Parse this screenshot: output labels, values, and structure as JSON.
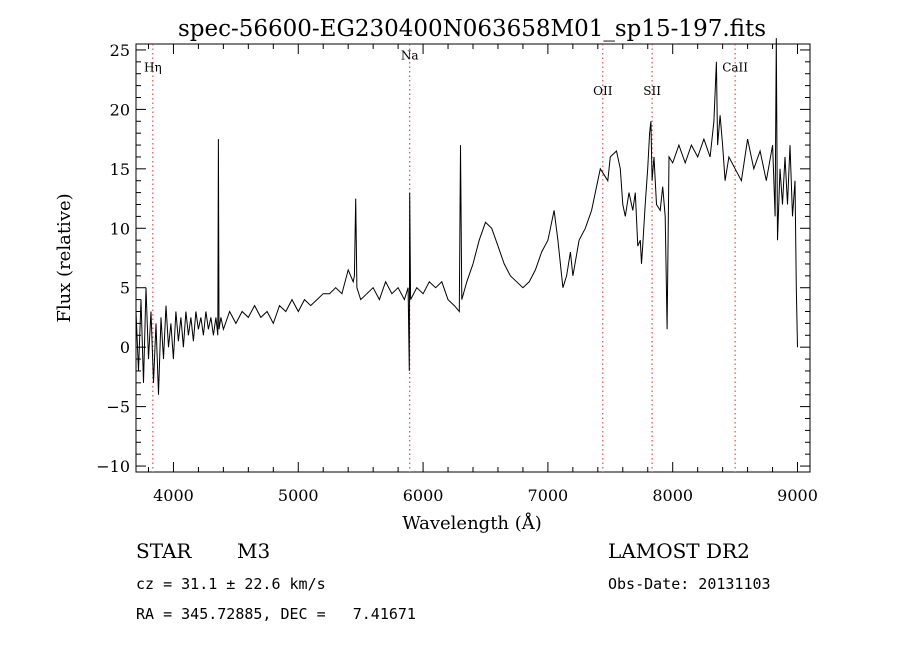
{
  "chart_data": {
    "type": "line",
    "title": "spec-56600-EG230400N063658M01_sp15-197.fits",
    "xlabel": "Wavelength (Å)",
    "ylabel": "Flux (relative)",
    "xlim": [
      3700,
      9100
    ],
    "ylim": [
      -10.5,
      25.5
    ],
    "x_ticks": [
      4000,
      5000,
      6000,
      7000,
      8000,
      9000
    ],
    "y_ticks": [
      -10,
      -5,
      0,
      5,
      10,
      15,
      20,
      25
    ],
    "line_markers": [
      {
        "label": "Hη",
        "x": 3835,
        "label_y": 23.2
      },
      {
        "label": "Na",
        "x": 5893,
        "label_y": 24.2
      },
      {
        "label": "OII",
        "x": 7440,
        "label_y": 21.2
      },
      {
        "label": "SII",
        "x": 7835,
        "label_y": 21.2
      },
      {
        "label": "CaII",
        "x": 8500,
        "label_y": 23.2
      }
    ],
    "series": [
      {
        "points": [
          [
            3700,
            3
          ],
          [
            3720,
            -2
          ],
          [
            3740,
            4
          ],
          [
            3760,
            -3
          ],
          [
            3780,
            5
          ],
          [
            3800,
            -1
          ],
          [
            3820,
            3
          ],
          [
            3840,
            -3
          ],
          [
            3860,
            2
          ],
          [
            3880,
            -4
          ],
          [
            3900,
            2.5
          ],
          [
            3920,
            -1
          ],
          [
            3940,
            3.5
          ],
          [
            3960,
            0
          ],
          [
            3980,
            2
          ],
          [
            4000,
            -1
          ],
          [
            4020,
            3
          ],
          [
            4040,
            0.5
          ],
          [
            4060,
            2.5
          ],
          [
            4080,
            0
          ],
          [
            4100,
            3
          ],
          [
            4120,
            1
          ],
          [
            4140,
            2.5
          ],
          [
            4160,
            0.5
          ],
          [
            4180,
            3
          ],
          [
            4200,
            1.5
          ],
          [
            4220,
            2.5
          ],
          [
            4240,
            1
          ],
          [
            4260,
            3
          ],
          [
            4280,
            1.5
          ],
          [
            4300,
            2.5
          ],
          [
            4320,
            1
          ],
          [
            4340,
            2.5
          ],
          [
            4355,
            1
          ],
          [
            4360,
            17.5
          ],
          [
            4365,
            1.5
          ],
          [
            4380,
            2.5
          ],
          [
            4400,
            1.5
          ],
          [
            4450,
            3
          ],
          [
            4500,
            2
          ],
          [
            4550,
            3
          ],
          [
            4600,
            2.5
          ],
          [
            4650,
            3.5
          ],
          [
            4700,
            2.5
          ],
          [
            4750,
            3
          ],
          [
            4800,
            2
          ],
          [
            4850,
            3.5
          ],
          [
            4900,
            3
          ],
          [
            4950,
            4
          ],
          [
            5000,
            3
          ],
          [
            5050,
            4
          ],
          [
            5100,
            3.5
          ],
          [
            5150,
            4
          ],
          [
            5200,
            4.5
          ],
          [
            5250,
            4.5
          ],
          [
            5300,
            5
          ],
          [
            5350,
            4.5
          ],
          [
            5400,
            6.5
          ],
          [
            5440,
            5.5
          ],
          [
            5450,
            6
          ],
          [
            5460,
            12.5
          ],
          [
            5470,
            5
          ],
          [
            5500,
            4
          ],
          [
            5550,
            4.5
          ],
          [
            5600,
            5
          ],
          [
            5650,
            4
          ],
          [
            5700,
            5.5
          ],
          [
            5750,
            4.5
          ],
          [
            5800,
            5
          ],
          [
            5850,
            4
          ],
          [
            5880,
            5
          ],
          [
            5890,
            -2
          ],
          [
            5893,
            13
          ],
          [
            5900,
            4
          ],
          [
            5950,
            5
          ],
          [
            6000,
            4.5
          ],
          [
            6050,
            5.5
          ],
          [
            6100,
            5
          ],
          [
            6150,
            5.5
          ],
          [
            6200,
            4
          ],
          [
            6250,
            3.5
          ],
          [
            6290,
            3
          ],
          [
            6300,
            17
          ],
          [
            6310,
            4
          ],
          [
            6350,
            5.5
          ],
          [
            6400,
            7
          ],
          [
            6450,
            9
          ],
          [
            6500,
            10.5
          ],
          [
            6550,
            10
          ],
          [
            6600,
            8.5
          ],
          [
            6650,
            7
          ],
          [
            6700,
            6
          ],
          [
            6750,
            5.5
          ],
          [
            6800,
            5
          ],
          [
            6850,
            5.5
          ],
          [
            6900,
            6.5
          ],
          [
            6950,
            8
          ],
          [
            7000,
            9
          ],
          [
            7020,
            10
          ],
          [
            7050,
            11.5
          ],
          [
            7080,
            9
          ],
          [
            7100,
            7
          ],
          [
            7120,
            5
          ],
          [
            7150,
            6
          ],
          [
            7180,
            8
          ],
          [
            7200,
            6
          ],
          [
            7250,
            9
          ],
          [
            7300,
            10
          ],
          [
            7350,
            11.5
          ],
          [
            7400,
            14
          ],
          [
            7420,
            15
          ],
          [
            7450,
            14.5
          ],
          [
            7480,
            14
          ],
          [
            7500,
            16
          ],
          [
            7550,
            16.5
          ],
          [
            7580,
            15
          ],
          [
            7600,
            12
          ],
          [
            7620,
            11
          ],
          [
            7650,
            13
          ],
          [
            7680,
            11.5
          ],
          [
            7700,
            13
          ],
          [
            7720,
            8.5
          ],
          [
            7740,
            9
          ],
          [
            7750,
            7
          ],
          [
            7760,
            8.5
          ],
          [
            7780,
            12
          ],
          [
            7800,
            15
          ],
          [
            7815,
            18
          ],
          [
            7825,
            19
          ],
          [
            7835,
            14
          ],
          [
            7850,
            16
          ],
          [
            7870,
            12
          ],
          [
            7900,
            11.5
          ],
          [
            7920,
            13.5
          ],
          [
            7940,
            11
          ],
          [
            7955,
            1.5
          ],
          [
            7970,
            16
          ],
          [
            8000,
            15.5
          ],
          [
            8050,
            17
          ],
          [
            8100,
            15.5
          ],
          [
            8150,
            17
          ],
          [
            8200,
            16
          ],
          [
            8250,
            17.5
          ],
          [
            8300,
            16
          ],
          [
            8330,
            19
          ],
          [
            8350,
            24
          ],
          [
            8360,
            17
          ],
          [
            8380,
            19.5
          ],
          [
            8400,
            17
          ],
          [
            8420,
            14
          ],
          [
            8450,
            16
          ],
          [
            8500,
            15
          ],
          [
            8550,
            14
          ],
          [
            8600,
            17.5
          ],
          [
            8650,
            15
          ],
          [
            8700,
            16.5
          ],
          [
            8750,
            14
          ],
          [
            8800,
            17
          ],
          [
            8820,
            11
          ],
          [
            8830,
            26
          ],
          [
            8840,
            9
          ],
          [
            8860,
            15
          ],
          [
            8880,
            12
          ],
          [
            8900,
            16
          ],
          [
            8920,
            12
          ],
          [
            8940,
            17
          ],
          [
            8960,
            11
          ],
          [
            8980,
            14
          ],
          [
            8990,
            5
          ],
          [
            9000,
            0
          ]
        ]
      }
    ]
  },
  "footer": {
    "star_label": "STAR",
    "spectral_type": "M3",
    "cz": "cz = 31.1 ± 22.6 km/s",
    "coords": "RA = 345.72885, DEC =   7.41671",
    "survey": "LAMOST DR2",
    "obs_date": "Obs-Date: 20131103"
  }
}
